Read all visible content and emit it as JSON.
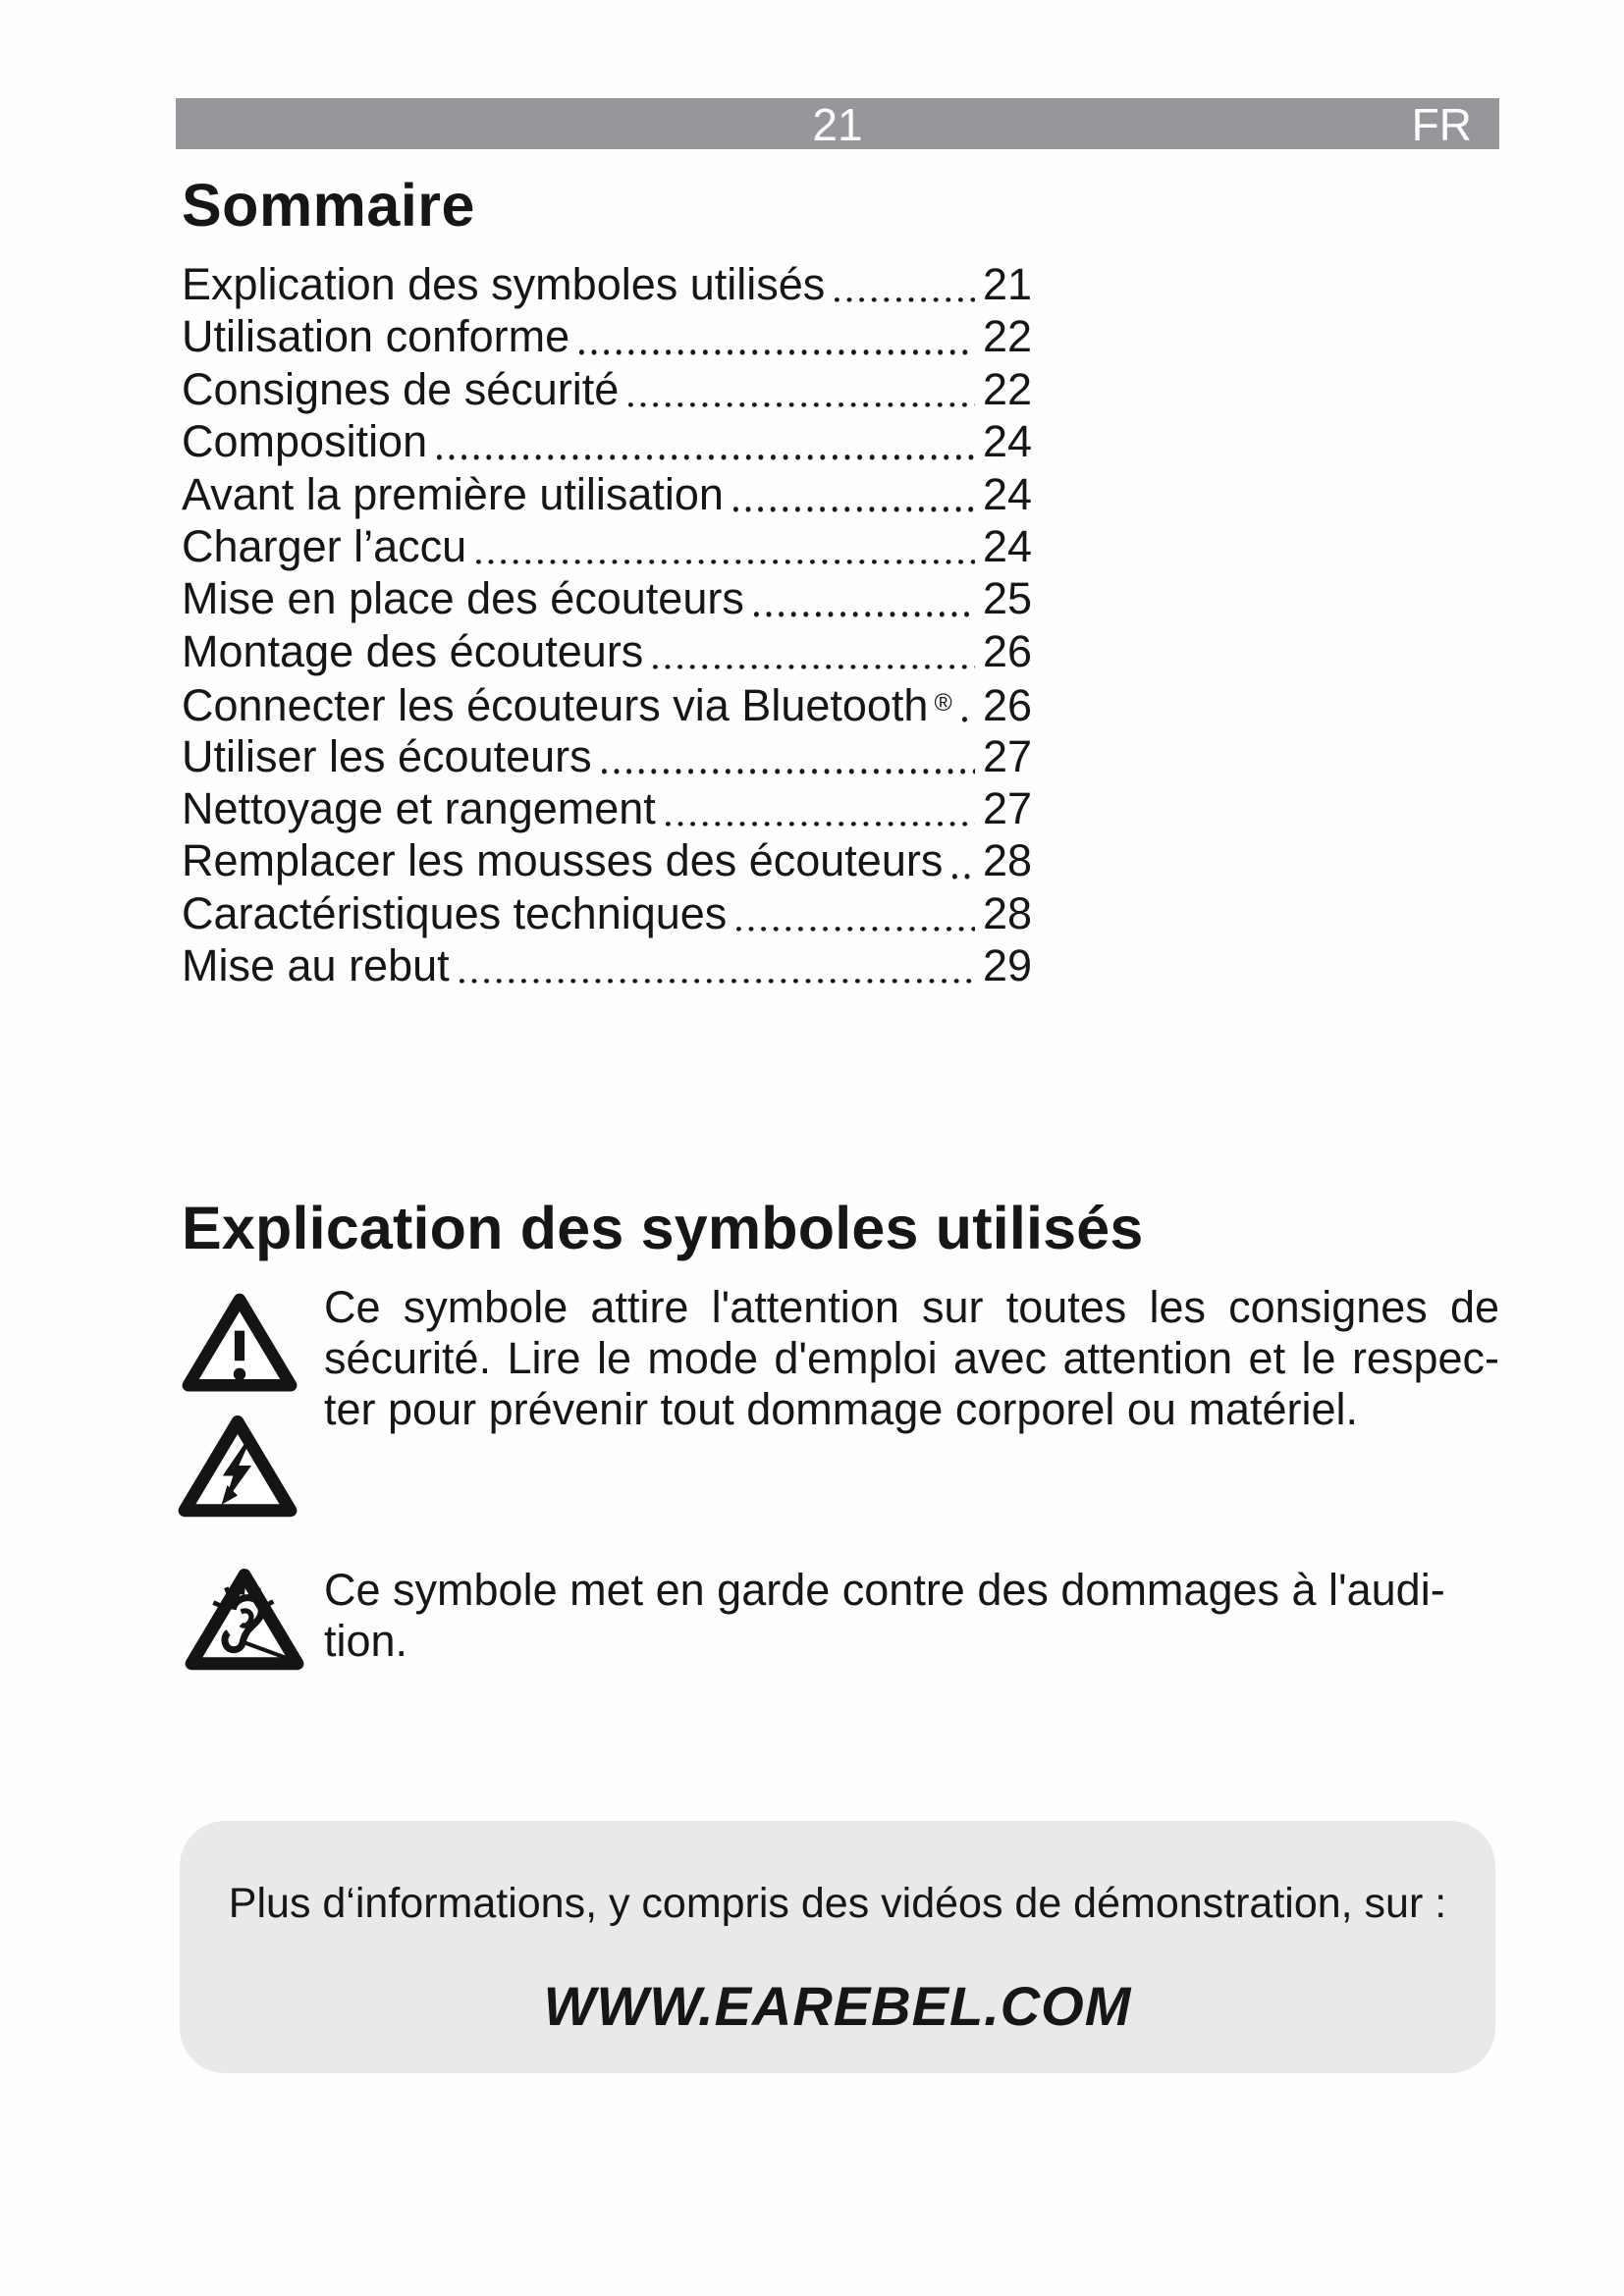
{
  "header": {
    "page_number": "21",
    "language": "FR"
  },
  "toc": {
    "title": "Sommaire",
    "entries": [
      {
        "label": "Explication des symboles utilisés",
        "page": "21"
      },
      {
        "label": "Utilisation conforme",
        "page": "22"
      },
      {
        "label": "Consignes de sécurité",
        "page": "22"
      },
      {
        "label": "Composition",
        "page": "24"
      },
      {
        "label": "Avant la première utilisation",
        "page": "24"
      },
      {
        "label": "Charger l’accu",
        "page": "24"
      },
      {
        "label": "Mise en place des écouteurs",
        "page": "25"
      },
      {
        "label": "Montage des écouteurs",
        "page": "26"
      },
      {
        "label": "Connecter les écouteurs via Bluetooth",
        "sup": "®",
        "page": "26"
      },
      {
        "label": "Utiliser les écouteurs",
        "page": "27"
      },
      {
        "label": "Nettoyage et rangement",
        "page": "27"
      },
      {
        "label": "Remplacer les mousses des écouteurs",
        "page": "28"
      },
      {
        "label": "Caractéristiques techniques",
        "page": "28"
      },
      {
        "label": "Mise au rebut",
        "page": "29"
      }
    ]
  },
  "symbols": {
    "heading": "Explication des symboles utilisés",
    "warning_paragraph": {
      "lines": [
        "Ce symbole attire l'attention sur toutes les consignes de",
        "sécurité. Lire le mode d'emploi avec attention et le respec-",
        "ter pour prévenir tout dommage corporel ou matériel."
      ],
      "justified_lines": 2
    },
    "hearing_paragraph": {
      "lines": [
        "Ce symbole met en garde contre des dommages à l'audi-",
        "tion."
      ],
      "justified_lines": 0
    },
    "icons": {
      "warning": "warning-triangle-exclamation",
      "voltage": "warning-triangle-lightning",
      "hearing": "warning-triangle-hearing-damage"
    }
  },
  "info_box": {
    "text": "Plus d‘informations, y compris des vidéos de démonstration, sur :",
    "website": "WWW.EAREBEL.COM"
  },
  "colors": {
    "header_bar": "#95979a",
    "header_text": "#ffffff",
    "info_box_bg": "#e9e9e9",
    "text": "#161616"
  }
}
